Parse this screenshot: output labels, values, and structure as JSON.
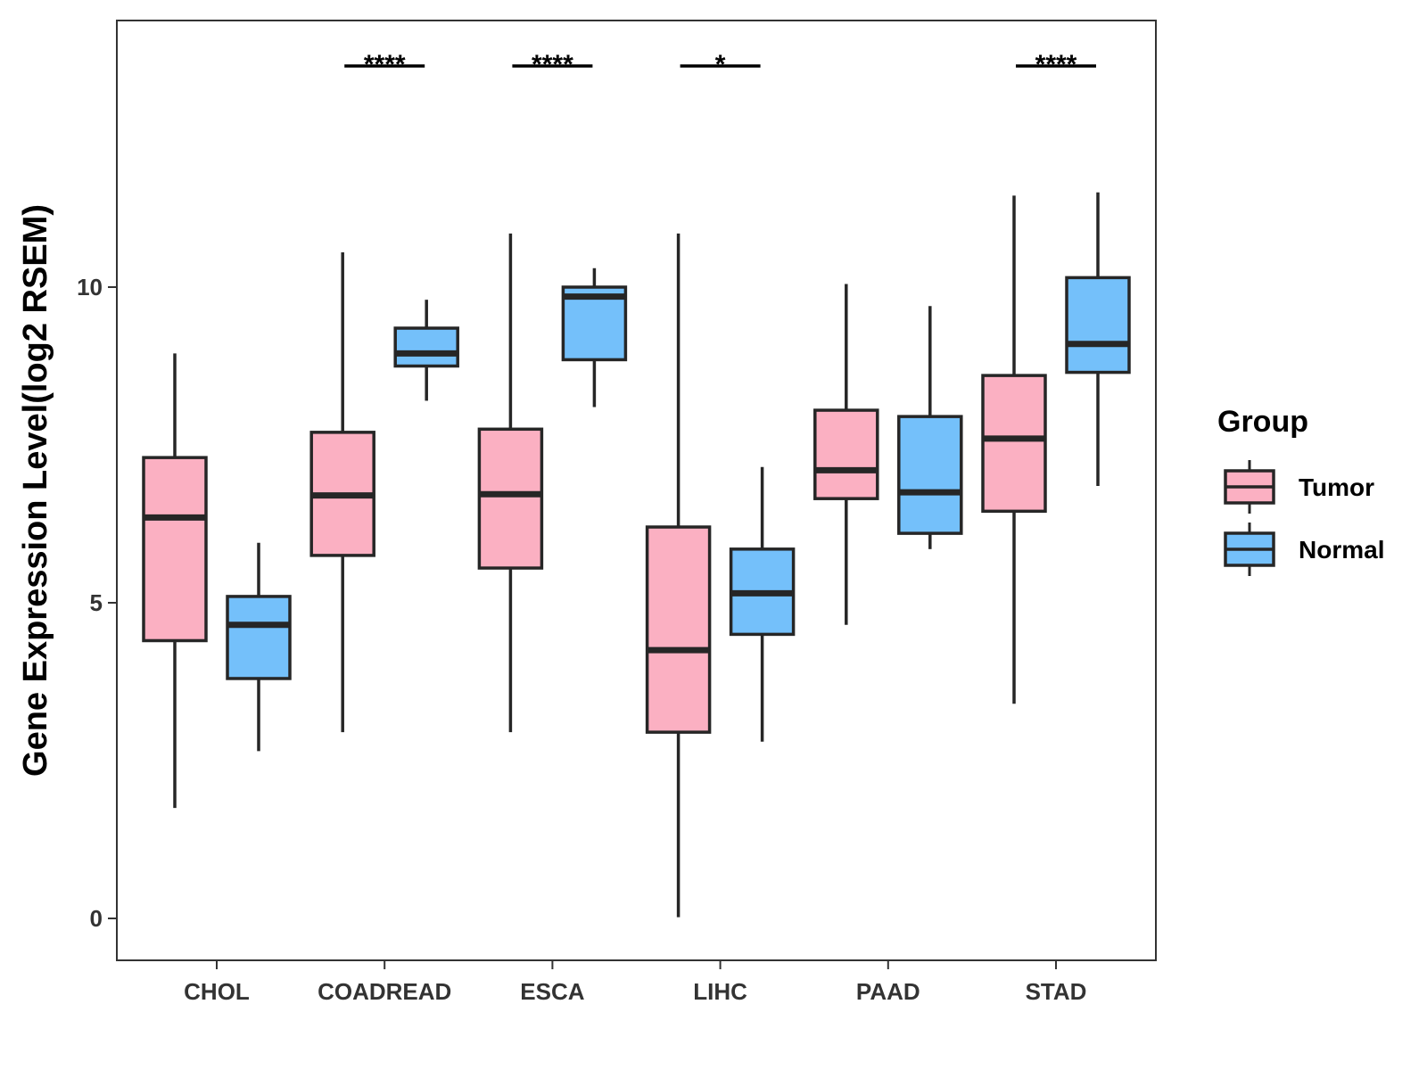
{
  "chart_data": {
    "type": "boxplot",
    "title": "",
    "xlabel": "",
    "ylabel": "Gene Expression Level(log2 RSEM)",
    "ylim": [
      -0.65,
      14.25
    ],
    "yticks": [
      0,
      5,
      10
    ],
    "ytick_labels": [
      "0",
      "5",
      "10"
    ],
    "grid": false,
    "categories": [
      "CHOL",
      "COADREAD",
      "ESCA",
      "LIHC",
      "PAAD",
      "STAD"
    ],
    "legend": {
      "title": "Group",
      "position": "right",
      "entries": [
        "Tumor",
        "Normal"
      ]
    },
    "colors": {
      "Tumor": "#FBB0C2",
      "Normal": "#74C0FA",
      "outline": "#262626"
    },
    "series": [
      {
        "name": "Tumor",
        "boxes": [
          {
            "min": 1.75,
            "q1": 4.4,
            "median": 6.35,
            "q3": 7.3,
            "max": 8.95
          },
          {
            "min": 2.95,
            "q1": 5.75,
            "median": 6.7,
            "q3": 7.7,
            "max": 10.55
          },
          {
            "min": 2.95,
            "q1": 5.55,
            "median": 6.72,
            "q3": 7.75,
            "max": 10.85
          },
          {
            "min": 0.02,
            "q1": 2.95,
            "median": 4.25,
            "q3": 6.2,
            "max": 10.85
          },
          {
            "min": 4.65,
            "q1": 6.65,
            "median": 7.1,
            "q3": 8.05,
            "max": 10.05
          },
          {
            "min": 3.4,
            "q1": 6.45,
            "median": 7.6,
            "q3": 8.6,
            "max": 11.45
          }
        ]
      },
      {
        "name": "Normal",
        "boxes": [
          {
            "min": 2.65,
            "q1": 3.8,
            "median": 4.65,
            "q3": 5.1,
            "max": 5.95
          },
          {
            "min": 8.2,
            "q1": 8.75,
            "median": 8.95,
            "q3": 9.35,
            "max": 9.8
          },
          {
            "min": 8.1,
            "q1": 8.85,
            "median": 9.85,
            "q3": 10.0,
            "max": 10.3
          },
          {
            "min": 2.8,
            "q1": 4.5,
            "median": 5.15,
            "q3": 5.85,
            "max": 7.15
          },
          {
            "min": 5.85,
            "q1": 6.1,
            "median": 6.75,
            "q3": 7.95,
            "max": 9.7
          },
          {
            "min": 6.85,
            "q1": 8.65,
            "median": 9.1,
            "q3": 10.15,
            "max": 11.5
          }
        ]
      }
    ],
    "significance": [
      {
        "category": "COADREAD",
        "label": "****"
      },
      {
        "category": "ESCA",
        "label": "****"
      },
      {
        "category": "LIHC",
        "label": "*"
      },
      {
        "category": "STAD",
        "label": "****"
      }
    ]
  }
}
